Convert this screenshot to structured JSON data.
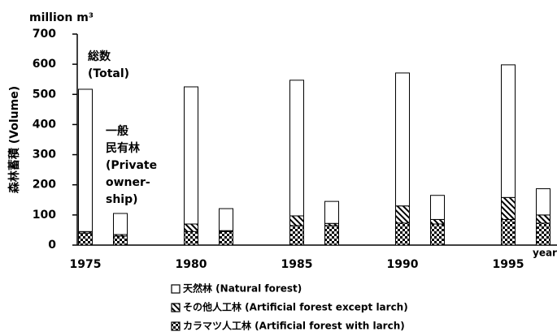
{
  "chart_data": {
    "type": "stacked_bar",
    "units": "million m³",
    "y_label": "森林蓄積 (Volume)",
    "x_label": "year",
    "categories": [
      "1975",
      null,
      "1980",
      null,
      "1985",
      null,
      "1990",
      null,
      "1995",
      null
    ],
    "series": [
      {
        "name": "天然林 (Natural forest)",
        "color": "#ffffff",
        "pattern": "none",
        "values": [
          472,
          70,
          455,
          73,
          450,
          73,
          441,
          80,
          440,
          87
        ]
      },
      {
        "name": "その他人工林 (Artificial forest except larch)",
        "color": "#000000",
        "pattern": "hatch",
        "values": [
          5,
          5,
          25,
          3,
          32,
          7,
          57,
          15,
          73,
          27
        ]
      },
      {
        "name": "カラマツ人工林 (Artificial forest with larch)",
        "color": "#000000",
        "pattern": "check",
        "values": [
          40,
          30,
          45,
          45,
          65,
          65,
          73,
          70,
          85,
          73
        ]
      }
    ],
    "annotations": [
      {
        "target": 0,
        "lines": [
          "総数",
          "(Total)"
        ]
      },
      {
        "target": 1,
        "lines": [
          "一般",
          "民有林",
          "(Private",
          "owner-",
          "ship)"
        ]
      }
    ],
    "ylim": [
      0,
      700
    ],
    "yticks": [
      0,
      100,
      200,
      300,
      400,
      500,
      600,
      700
    ]
  }
}
